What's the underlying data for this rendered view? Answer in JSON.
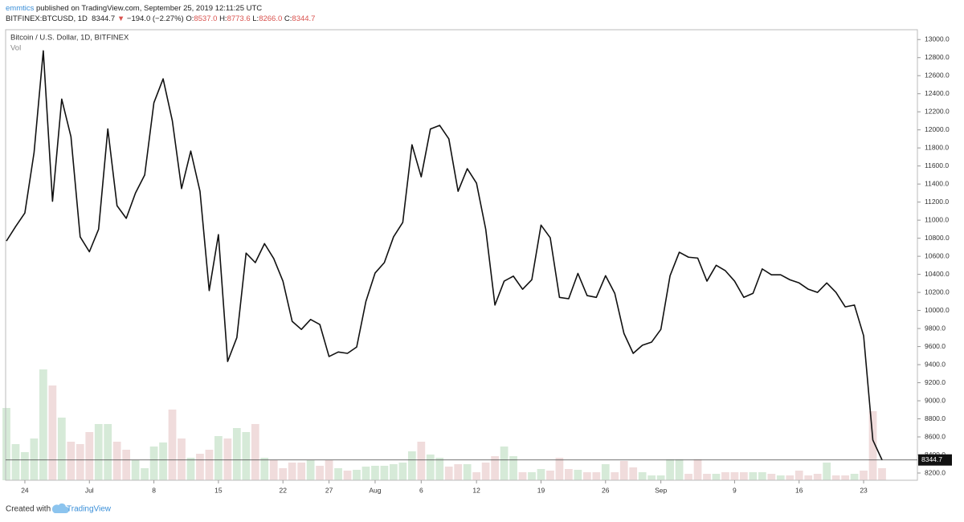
{
  "header": {
    "publisher": "emmtics",
    "published": "published on TradingView.com, September 25, 2019 12:11:25 UTC",
    "symbol": "BITFINEX:BTCUSD, 1D",
    "last": "8344.7",
    "arrow": "▼",
    "change": "−194.0 (−2.27%)",
    "open_label": "O:",
    "open": "8537.0",
    "high_label": "H:",
    "high": "8773.6",
    "low_label": "L:",
    "low": "8266.0",
    "close_label": "C:",
    "close": "8344.7"
  },
  "chart_data": {
    "type": "line",
    "title": "Bitcoin / U.S. Dollar, 1D, BITFINEX",
    "color": "#111111",
    "categories": [
      null,
      null,
      "24",
      null,
      null,
      null,
      null,
      null,
      null,
      "Jul",
      null,
      null,
      null,
      null,
      null,
      null,
      "8",
      null,
      null,
      null,
      null,
      null,
      null,
      "15",
      null,
      null,
      null,
      null,
      null,
      null,
      "22",
      null,
      null,
      null,
      null,
      "27",
      null,
      null,
      null,
      null,
      "Aug",
      null,
      null,
      null,
      null,
      "6",
      null,
      null,
      null,
      null,
      null,
      "12",
      null,
      null,
      null,
      null,
      null,
      null,
      "19",
      null,
      null,
      null,
      null,
      null,
      null,
      "26",
      null,
      null,
      null,
      null,
      null,
      "Sep",
      null,
      null,
      null,
      null,
      null,
      null,
      null,
      "9",
      null,
      null,
      null,
      null,
      null,
      null,
      "16",
      null,
      null,
      null,
      null,
      null,
      null,
      "23",
      null,
      null
    ],
    "values": [
      10769,
      10930,
      11080,
      11750,
      12875,
      11210,
      12340,
      11925,
      10815,
      10650,
      10900,
      12010,
      11160,
      11020,
      11300,
      11500,
      12300,
      12565,
      12100,
      11350,
      11765,
      11320,
      10220,
      10840,
      9435,
      9700,
      10635,
      10530,
      10740,
      10575,
      10325,
      9880,
      9790,
      9900,
      9845,
      9490,
      9540,
      9525,
      9595,
      10100,
      10415,
      10530,
      10815,
      10975,
      11835,
      11480,
      12010,
      12050,
      11900,
      11320,
      11570,
      11410,
      10900,
      10060,
      10325,
      10380,
      10235,
      10340,
      10945,
      10805,
      10145,
      10130,
      10410,
      10165,
      10145,
      10385,
      10190,
      9745,
      9525,
      9615,
      9650,
      9790,
      10385,
      10645,
      10590,
      10580,
      10325,
      10500,
      10440,
      10325,
      10145,
      10190,
      10460,
      10395,
      10395,
      10340,
      10305,
      10235,
      10200,
      10305,
      10200,
      10040,
      10060,
      9720,
      8565,
      8344.7
    ],
    "ylim": [
      8120,
      13100
    ],
    "yticks": [
      {
        "value": 8200,
        "label": "8200.0"
      },
      {
        "value": 8400,
        "label": "8400.0"
      },
      {
        "value": 8600,
        "label": "8600.0"
      },
      {
        "value": 8800,
        "label": "8800.0"
      },
      {
        "value": 9000,
        "label": "9000.0"
      },
      {
        "value": 9200,
        "label": "9200.0"
      },
      {
        "value": 9400,
        "label": "9400.0"
      },
      {
        "value": 9600,
        "label": "9600.0"
      },
      {
        "value": 9800,
        "label": "9800.0"
      },
      {
        "value": 10000,
        "label": "10000.0"
      },
      {
        "value": 10200,
        "label": "10200.0"
      },
      {
        "value": 10400,
        "label": "10400.0"
      },
      {
        "value": 10600,
        "label": "10600.0"
      },
      {
        "value": 10800,
        "label": "10800.0"
      },
      {
        "value": 11000,
        "label": "11000.0"
      },
      {
        "value": 11200,
        "label": "11200.0"
      },
      {
        "value": 11400,
        "label": "11400.0"
      },
      {
        "value": 11600,
        "label": "11600.0"
      },
      {
        "value": 11800,
        "label": "11800.0"
      },
      {
        "value": 12000,
        "label": "12000.0"
      },
      {
        "value": 12200,
        "label": "12200.0"
      },
      {
        "value": 12400,
        "label": "12400.0"
      },
      {
        "value": 12600,
        "label": "12600.0"
      },
      {
        "value": 12800,
        "label": "12800.0"
      },
      {
        "value": 13000,
        "label": "13000.0"
      }
    ],
    "grid": false,
    "volume": {
      "label": "Vol",
      "up_color": "#d6ead8",
      "down_color": "#f0dcdc",
      "vlim": [
        0,
        560
      ],
      "values": [
        90,
        45,
        35,
        52,
        138,
        118,
        78,
        48,
        45,
        60,
        70,
        70,
        48,
        38,
        25,
        15,
        42,
        47,
        88,
        52,
        28,
        33,
        38,
        55,
        52,
        65,
        60,
        70,
        28,
        25,
        15,
        22,
        22,
        25,
        18,
        25,
        15,
        12,
        13,
        17,
        18,
        18,
        20,
        22,
        36,
        48,
        32,
        28,
        17,
        20,
        20,
        10,
        22,
        30,
        42,
        30,
        10,
        10,
        14,
        12,
        28,
        14,
        13,
        10,
        10,
        20,
        10,
        24,
        16,
        10,
        6,
        6,
        26,
        26,
        8,
        26,
        8,
        8,
        10,
        10,
        10,
        10,
        10,
        8,
        6,
        6,
        12,
        6,
        8,
        22,
        6,
        6,
        8,
        12,
        86,
        15
      ]
    }
  },
  "footer": {
    "created": "Created with",
    "brand": "TradingView"
  }
}
